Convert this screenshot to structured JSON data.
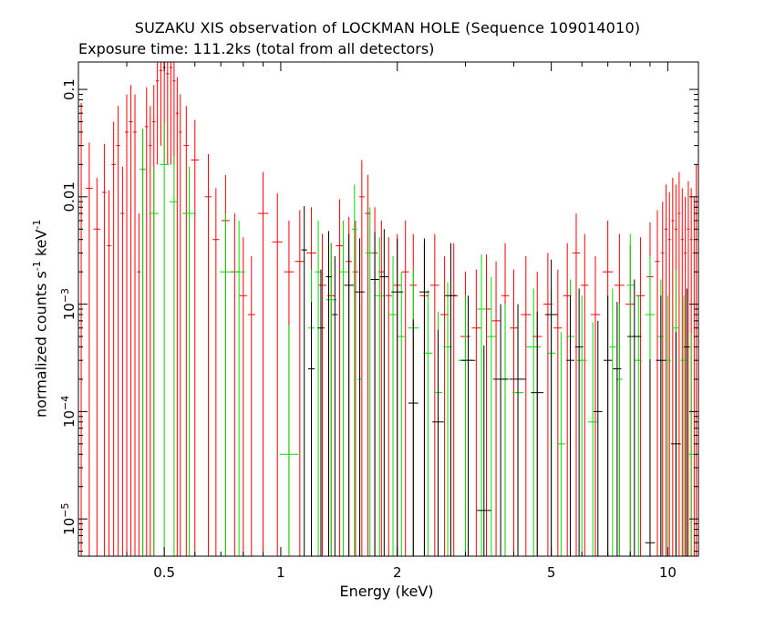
{
  "chart_data": {
    "type": "scatter",
    "title": "SUZAKU XIS observation of LOCKMAN HOLE (Sequence 109014010)",
    "subtitle": "Exposure time: 111.2ks (total from all detectors)",
    "xlabel": "Energy (keV)",
    "ylabel_text": "normalized counts s",
    "ylabel_unit": "keV",
    "ylabel_exp": "-1",
    "x_scale": "log",
    "y_scale": "log",
    "xlim": [
      0.3,
      12
    ],
    "ylim": [
      4.5e-06,
      0.18
    ],
    "x_ticks": [
      {
        "value": 0.5,
        "label": "0.5"
      },
      {
        "value": 1,
        "label": "1"
      },
      {
        "value": 2,
        "label": "2"
      },
      {
        "value": 5,
        "label": "5"
      },
      {
        "value": 10,
        "label": "10"
      }
    ],
    "y_ticks": [
      {
        "value": 0.1,
        "label": "0.1"
      },
      {
        "value": 0.01,
        "label": "0.01"
      },
      {
        "value": 0.001,
        "label": "10",
        "exp": "−3"
      },
      {
        "value": 0.0001,
        "label": "10",
        "exp": "−4"
      },
      {
        "value": 1e-05,
        "label": "10",
        "exp": "−5"
      }
    ],
    "series": [
      {
        "color": "#ff0000",
        "points": [
          [
            0.305,
            0.03,
            0.045
          ],
          [
            0.32,
            0.012,
            0.02
          ],
          [
            0.335,
            0.005,
            0.01
          ],
          [
            0.35,
            0.011,
            0.02
          ],
          [
            0.36,
            0.0035,
            0.008
          ],
          [
            0.37,
            0.02,
            0.03
          ],
          [
            0.38,
            0.03,
            0.04
          ],
          [
            0.39,
            0.007,
            0.012
          ],
          [
            0.4,
            0.04,
            0.05
          ],
          [
            0.41,
            0.05,
            0.06
          ],
          [
            0.42,
            0.04,
            0.05
          ],
          [
            0.43,
            0.002,
            0.005
          ],
          [
            0.44,
            0.018,
            0.025
          ],
          [
            0.45,
            0.045,
            0.06
          ],
          [
            0.46,
            0.03,
            0.04
          ],
          [
            0.47,
            0.05,
            0.06
          ],
          [
            0.48,
            0.12,
            0.1
          ],
          [
            0.49,
            0.15,
            0.12
          ],
          [
            0.5,
            0.16,
            0.14
          ],
          [
            0.51,
            0.14,
            0.12
          ],
          [
            0.52,
            0.16,
            0.14
          ],
          [
            0.53,
            0.12,
            0.1
          ],
          [
            0.54,
            0.06,
            0.07
          ],
          [
            0.55,
            0.04,
            0.05
          ],
          [
            0.57,
            0.03,
            0.04
          ],
          [
            0.6,
            0.022,
            0.03
          ],
          [
            0.65,
            0.01,
            0.015
          ],
          [
            0.68,
            0.004,
            0.008
          ],
          [
            0.72,
            0.006,
            0.01
          ],
          [
            0.76,
            0.002,
            0.005
          ],
          [
            0.8,
            0.0012,
            0.003
          ],
          [
            0.84,
            0.0008,
            0.002
          ],
          [
            0.9,
            0.007,
            0.01
          ],
          [
            0.98,
            0.0038,
            0.007
          ],
          [
            1.05,
            0.002,
            0.004
          ],
          [
            1.12,
            0.0025,
            0.005
          ],
          [
            1.2,
            0.003,
            0.005
          ],
          [
            1.28,
            0.0015,
            0.003
          ],
          [
            1.35,
            0.0012,
            0.0025
          ],
          [
            1.42,
            0.0035,
            0.006
          ],
          [
            1.5,
            0.0025,
            0.004
          ],
          [
            1.56,
            0.002,
            0.004
          ],
          [
            1.62,
            0.01,
            0.012
          ],
          [
            1.68,
            0.007,
            0.009
          ],
          [
            1.75,
            0.003,
            0.005
          ],
          [
            1.82,
            0.002,
            0.004
          ],
          [
            1.9,
            0.0012,
            0.003
          ],
          [
            2.0,
            0.0015,
            0.003
          ],
          [
            2.1,
            0.002,
            0.004
          ],
          [
            2.2,
            0.0015,
            0.003
          ],
          [
            2.35,
            0.0012,
            0.0025
          ],
          [
            2.5,
            0.0015,
            0.003
          ],
          [
            2.65,
            0.0008,
            0.002
          ],
          [
            2.8,
            0.0012,
            0.0025
          ],
          [
            3.0,
            0.0005,
            0.0015
          ],
          [
            3.2,
            0.0006,
            0.0015
          ],
          [
            3.4,
            0.0009,
            0.002
          ],
          [
            3.6,
            0.0007,
            0.0018
          ],
          [
            3.8,
            0.0012,
            0.0025
          ],
          [
            4.0,
            0.0006,
            0.0015
          ],
          [
            4.3,
            0.0008,
            0.002
          ],
          [
            4.6,
            0.0005,
            0.0015
          ],
          [
            4.9,
            0.001,
            0.002
          ],
          [
            5.2,
            0.0006,
            0.0015
          ],
          [
            5.5,
            0.0012,
            0.0025
          ],
          [
            5.8,
            0.003,
            0.004
          ],
          [
            6.1,
            0.0015,
            0.003
          ],
          [
            6.5,
            0.0008,
            0.002
          ],
          [
            7.0,
            0.002,
            0.004
          ],
          [
            7.5,
            0.0015,
            0.003
          ],
          [
            8.0,
            0.001,
            0.0025
          ],
          [
            8.5,
            0.0012,
            0.003
          ],
          [
            9.0,
            0.0018,
            0.004
          ],
          [
            9.4,
            0.0025,
            0.005
          ],
          [
            9.7,
            0.003,
            0.006
          ],
          [
            9.9,
            0.005,
            0.008
          ],
          [
            10.1,
            0.004,
            0.007
          ],
          [
            10.3,
            0.006,
            0.009
          ],
          [
            10.5,
            0.005,
            0.008
          ],
          [
            10.7,
            0.007,
            0.01
          ],
          [
            10.9,
            0.004,
            0.008
          ],
          [
            11.1,
            0.003,
            0.007
          ],
          [
            11.3,
            0.005,
            0.009
          ],
          [
            11.5,
            0.004,
            0.008
          ],
          [
            11.7,
            0.003,
            0.007
          ],
          [
            11.85,
            0.008,
            0.012
          ]
        ]
      },
      {
        "color": "#00dd00",
        "points": [
          [
            0.44,
            0.018,
            0.025
          ],
          [
            0.47,
            0.007,
            0.012
          ],
          [
            0.5,
            0.02,
            0.03
          ],
          [
            0.53,
            0.009,
            0.015
          ],
          [
            0.58,
            0.007,
            0.012
          ],
          [
            0.72,
            0.002,
            0.005
          ],
          [
            0.78,
            0.002,
            0.004
          ],
          [
            1.05,
            4e-05,
            0.0006
          ],
          [
            1.2,
            0.0006,
            0.0015
          ],
          [
            1.25,
            0.002,
            0.004
          ],
          [
            1.35,
            0.0011,
            0.0025
          ],
          [
            1.45,
            0.002,
            0.004
          ],
          [
            1.55,
            0.005,
            0.008
          ],
          [
            1.6,
            0.0002,
            0.0008
          ],
          [
            1.7,
            0.003,
            0.005
          ],
          [
            1.8,
            0.0012,
            0.003
          ],
          [
            1.95,
            0.0008,
            0.002
          ],
          [
            2.05,
            0.0005,
            0.0015
          ],
          [
            2.2,
            0.0006,
            0.0015
          ],
          [
            2.4,
            0.00035,
            0.001
          ],
          [
            2.55,
            0.00015,
            0.0007
          ],
          [
            2.7,
            0.0004,
            0.0012
          ],
          [
            3.0,
            0.0003,
            0.0009
          ],
          [
            3.3,
            0.0009,
            0.002
          ],
          [
            3.5,
            0.0005,
            0.0013
          ],
          [
            3.8,
            0.0002,
            0.0008
          ],
          [
            4.1,
            0.00015,
            0.0007
          ],
          [
            4.5,
            0.0004,
            0.001
          ],
          [
            5.0,
            0.00035,
            0.001
          ],
          [
            5.3,
            5e-05,
            0.0005
          ],
          [
            5.6,
            0.0005,
            0.0012
          ],
          [
            6.0,
            0.0003,
            0.0009
          ],
          [
            6.4,
            8e-05,
            0.0006
          ],
          [
            7.2,
            0.0004,
            0.001
          ],
          [
            7.5,
            0.0002,
            0.0008
          ],
          [
            8.0,
            0.0015,
            0.003
          ],
          [
            8.4,
            0.0003,
            0.0009
          ],
          [
            9.0,
            0.0008,
            0.002
          ],
          [
            9.6,
            0.0005,
            0.0012
          ],
          [
            10.0,
            0.0003,
            0.0009
          ],
          [
            10.5,
            0.0006,
            0.0015
          ],
          [
            11.0,
            0.0003,
            0.0009
          ],
          [
            11.5,
            4e-05,
            0.0005
          ]
        ]
      },
      {
        "color": "#000000",
        "points": [
          [
            1.15,
            0.0032,
            0.005
          ],
          [
            1.2,
            0.00025,
            0.0008
          ],
          [
            1.27,
            0.0006,
            0.0015
          ],
          [
            1.33,
            0.0018,
            0.003
          ],
          [
            1.38,
            0.0008,
            0.002
          ],
          [
            1.5,
            0.0015,
            0.003
          ],
          [
            1.6,
            0.0013,
            0.0028
          ],
          [
            1.75,
            0.0017,
            0.003
          ],
          [
            1.85,
            0.0018,
            0.0032
          ],
          [
            2.0,
            0.0013,
            0.0028
          ],
          [
            2.2,
            0.00012,
            0.0006
          ],
          [
            2.35,
            0.0013,
            0.0028
          ],
          [
            2.55,
            8e-05,
            0.0005
          ],
          [
            2.75,
            0.0012,
            0.0025
          ],
          [
            3.05,
            0.0003,
            0.0009
          ],
          [
            3.35,
            1.2e-05,
            0.0004
          ],
          [
            3.7,
            0.0002,
            0.0008
          ],
          [
            4.1,
            0.0002,
            0.0008
          ],
          [
            4.6,
            0.00015,
            0.0007
          ],
          [
            5.0,
            0.0008,
            0.0018
          ],
          [
            5.6,
            0.0003,
            0.0009
          ],
          [
            5.9,
            0.0004,
            0.001
          ],
          [
            6.6,
            0.0001,
            0.0006
          ],
          [
            7.0,
            0.0003,
            0.0009
          ],
          [
            7.4,
            0.00025,
            0.0008
          ],
          [
            8.2,
            0.0005,
            0.0012
          ],
          [
            9.0,
            6e-06,
            0.0003
          ],
          [
            9.6,
            0.0003,
            0.0009
          ],
          [
            10.5,
            5e-05,
            0.0005
          ],
          [
            11.2,
            0.0004,
            0.001
          ]
        ]
      }
    ]
  }
}
